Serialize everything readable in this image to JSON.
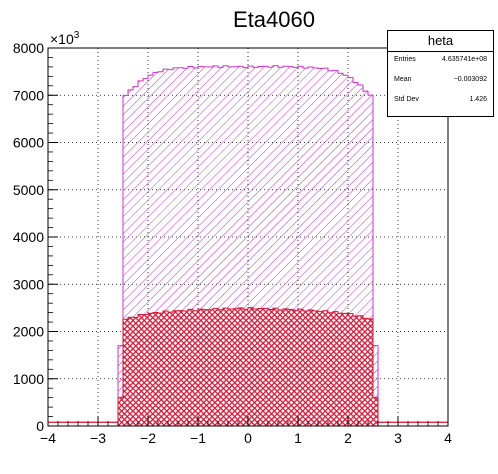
{
  "chart_data": {
    "type": "histogram",
    "title": "Eta4060",
    "xlim": [
      -4,
      4
    ],
    "ylim": [
      0,
      8000
    ],
    "y_multiplier": "×10",
    "y_multiplier_exp": "3",
    "x_ticks": [
      "−4",
      "−3",
      "−2",
      "−1",
      "0",
      "1",
      "2",
      "3",
      "4"
    ],
    "x_tick_values": [
      -4,
      -3,
      -2,
      -1,
      0,
      1,
      2,
      3,
      4
    ],
    "y_ticks": [
      "0",
      "1000",
      "2000",
      "3000",
      "4000",
      "5000",
      "6000",
      "7000",
      "8000"
    ],
    "y_tick_values": [
      0,
      1000,
      2000,
      3000,
      4000,
      5000,
      6000,
      7000,
      8000
    ],
    "grid": true,
    "bin_width": 0.1,
    "series": [
      {
        "color": "#cc33cc",
        "fill": "hatched",
        "edges": [
          -2.6,
          -2.5,
          2.5,
          2.6
        ],
        "plateau_x": [
          -2.5,
          -2.4,
          -2.2,
          -2.0,
          -1.8,
          -1.5,
          -1.0,
          -0.5,
          0.0,
          0.5,
          1.0,
          1.5,
          1.8,
          2.0,
          2.2,
          2.4,
          2.5
        ],
        "plateau_y": [
          6950,
          7050,
          7250,
          7400,
          7500,
          7570,
          7600,
          7610,
          7600,
          7610,
          7600,
          7570,
          7500,
          7400,
          7250,
          7050,
          6950
        ],
        "edge_y": [
          1700,
          1700
        ]
      },
      {
        "color": "#dd1133",
        "fill": "crosshatched",
        "edges": [
          -2.6,
          -2.5,
          2.5,
          2.6
        ],
        "plateau_x": [
          -2.5,
          -2.2,
          -2.0,
          -1.5,
          -1.0,
          -0.5,
          0.0,
          0.5,
          1.0,
          1.5,
          2.0,
          2.2,
          2.5
        ],
        "plateau_y": [
          2250,
          2330,
          2380,
          2430,
          2460,
          2480,
          2490,
          2480,
          2460,
          2430,
          2380,
          2330,
          2250
        ],
        "edge_y": [
          600,
          600
        ],
        "outside_y": 80
      }
    ]
  },
  "stats": {
    "title": "heta",
    "rows": [
      {
        "label": "Entries",
        "value": "4.635741e+08"
      },
      {
        "label": "Mean",
        "value": "−0.003092"
      },
      {
        "label": "Std Dev",
        "value": "1.426"
      }
    ]
  }
}
